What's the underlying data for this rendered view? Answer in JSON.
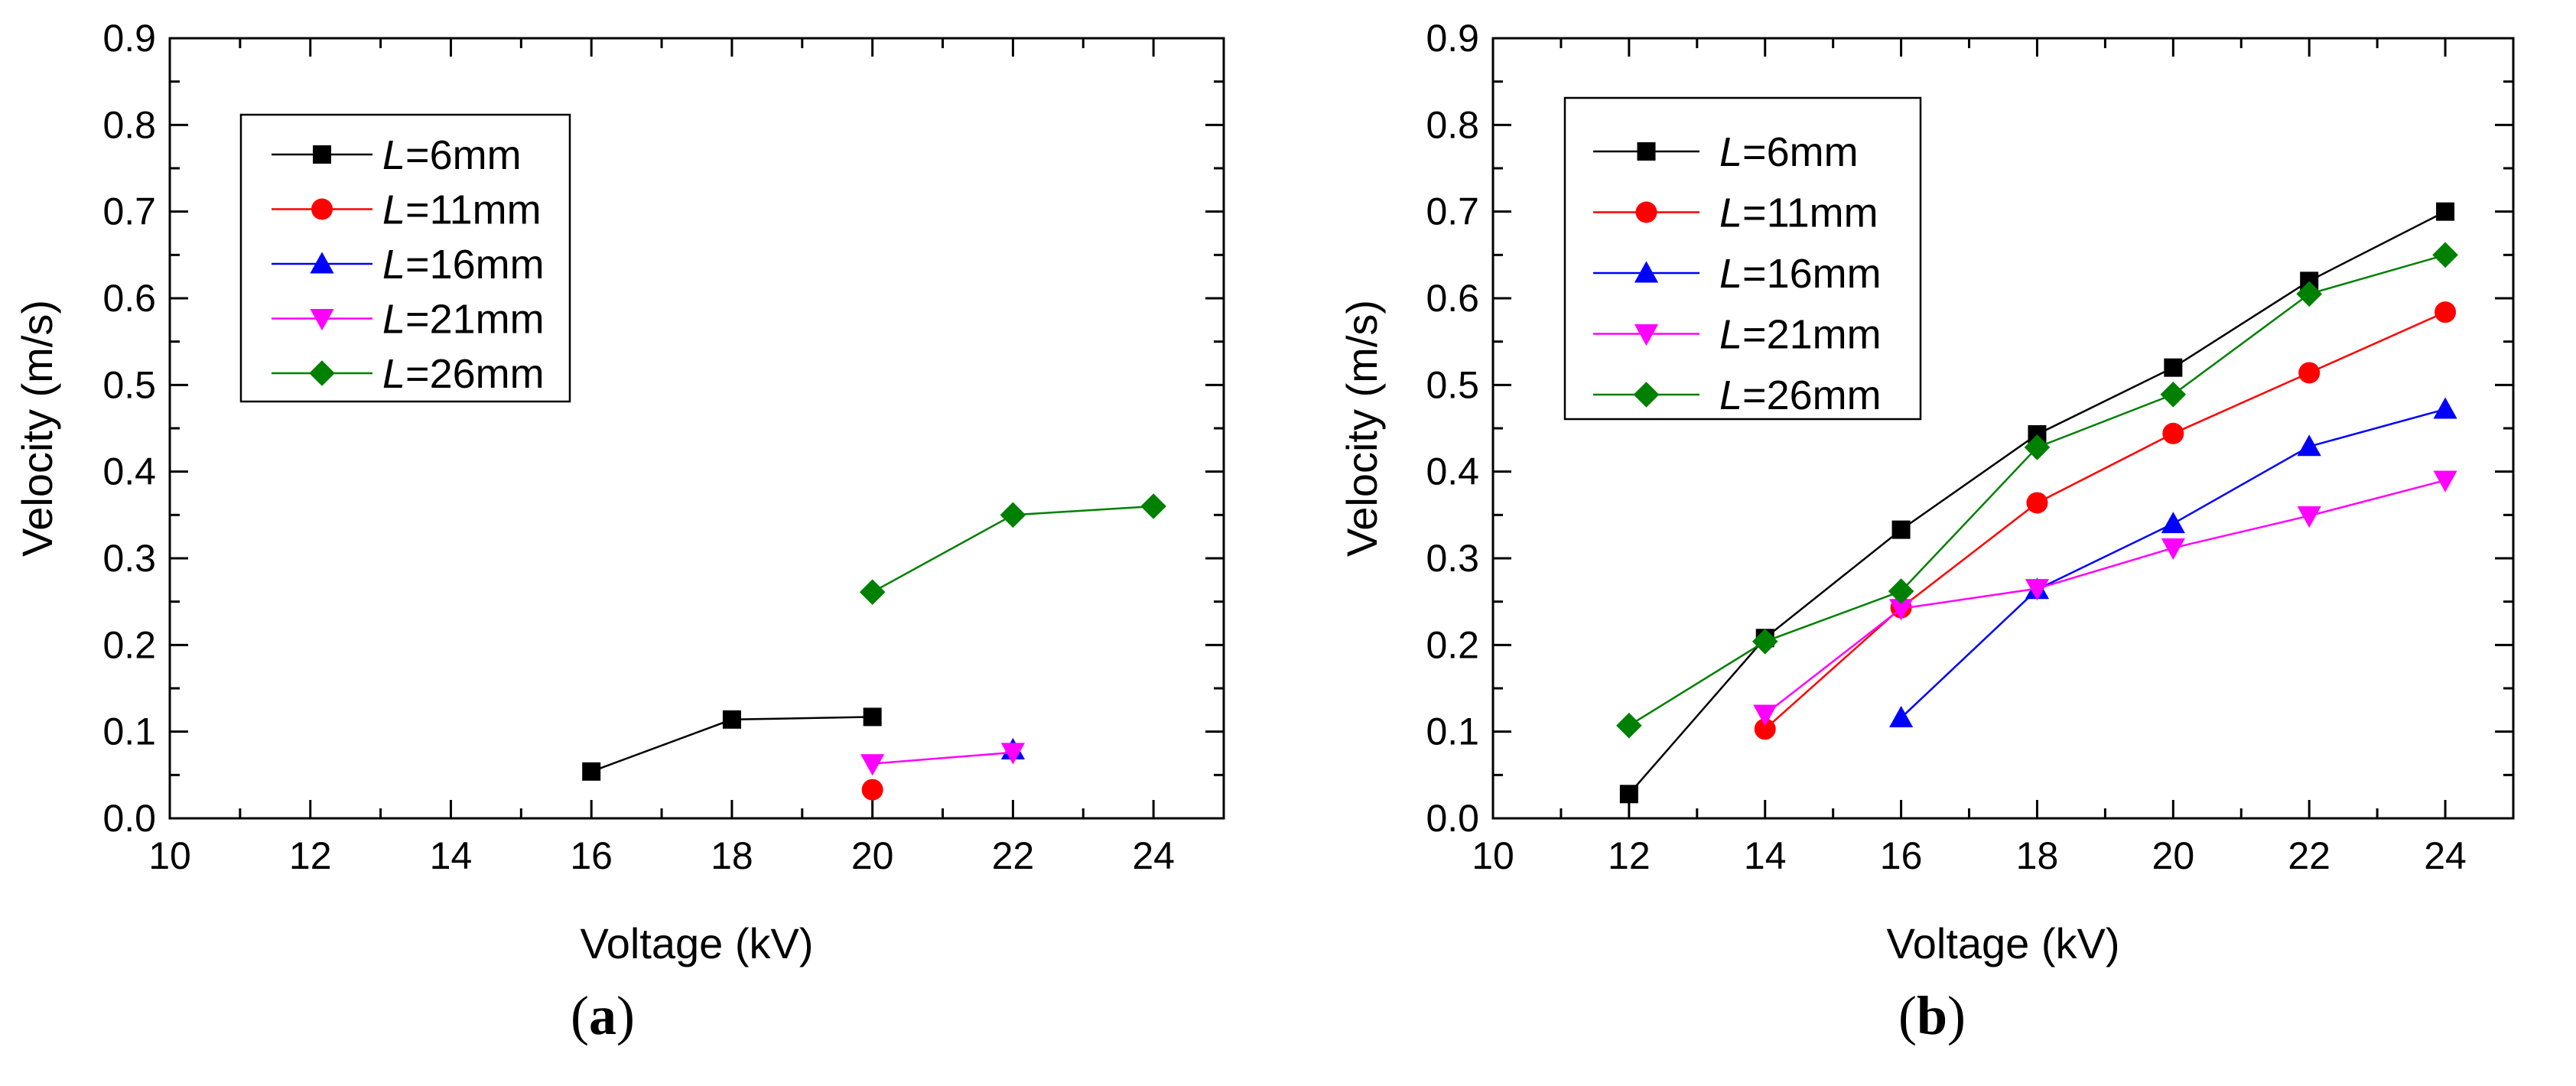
{
  "chart_data": [
    {
      "type": "line",
      "panel_label": "a",
      "xlabel": "Voltage (kV)",
      "ylabel": "Velocity (m/s)",
      "xlim": [
        10,
        25
      ],
      "ylim": [
        0,
        0.9
      ],
      "xticks": [
        "10",
        "12",
        "14",
        "16",
        "18",
        "20",
        "22",
        "24"
      ],
      "yticks": [
        "0.0",
        "0.1",
        "0.2",
        "0.3",
        "0.4",
        "0.5",
        "0.6",
        "0.7",
        "0.8",
        "0.9"
      ],
      "legend_position": "top-left",
      "series": [
        {
          "name": "L=6mm",
          "name_var": "L",
          "name_rest": "=6mm",
          "color": "#000000",
          "marker": "square",
          "x": [
            16,
            18,
            20
          ],
          "y": [
            0.054,
            0.114,
            0.117
          ]
        },
        {
          "name": "L=11mm",
          "name_var": "L",
          "name_rest": "=11mm",
          "color": "#ff0000",
          "marker": "circle",
          "x": [
            20
          ],
          "y": [
            0.033
          ]
        },
        {
          "name": "L=16mm",
          "name_var": "L",
          "name_rest": "=16mm",
          "color": "#0000ff",
          "marker": "triangle-up",
          "x": [
            22
          ],
          "y": [
            0.079
          ]
        },
        {
          "name": "L=21mm",
          "name_var": "L",
          "name_rest": "=21mm",
          "color": "#ff00ff",
          "marker": "triangle-down",
          "x": [
            20,
            22
          ],
          "y": [
            0.063,
            0.076
          ]
        },
        {
          "name": "L=26mm",
          "name_var": "L",
          "name_rest": "=26mm",
          "color": "#008000",
          "marker": "diamond",
          "x": [
            20,
            22,
            24
          ],
          "y": [
            0.261,
            0.35,
            0.36
          ]
        }
      ]
    },
    {
      "type": "line",
      "panel_label": "b",
      "xlabel": "Voltage (kV)",
      "ylabel": "Velocity (m/s)",
      "xlim": [
        10,
        25
      ],
      "ylim": [
        0,
        0.9
      ],
      "xticks": [
        "10",
        "12",
        "14",
        "16",
        "18",
        "20",
        "22",
        "24"
      ],
      "yticks": [
        "0.0",
        "0.1",
        "0.2",
        "0.3",
        "0.4",
        "0.5",
        "0.6",
        "0.7",
        "0.8",
        "0.9"
      ],
      "legend_position": "top-left",
      "series": [
        {
          "name": "L=6mm",
          "name_var": "L",
          "name_rest": "=6mm",
          "color": "#000000",
          "marker": "square",
          "x": [
            12,
            14,
            16,
            18,
            20,
            22,
            24
          ],
          "y": [
            0.028,
            0.208,
            0.333,
            0.443,
            0.52,
            0.62,
            0.7
          ]
        },
        {
          "name": "L=11mm",
          "name_var": "L",
          "name_rest": "=11mm",
          "color": "#ff0000",
          "marker": "circle",
          "x": [
            14,
            16,
            18,
            20,
            22,
            24
          ],
          "y": [
            0.103,
            0.243,
            0.364,
            0.444,
            0.514,
            0.584
          ]
        },
        {
          "name": "L=16mm",
          "name_var": "L",
          "name_rest": "=16mm",
          "color": "#0000ff",
          "marker": "triangle-up",
          "x": [
            16,
            18,
            20,
            22,
            24
          ],
          "y": [
            0.116,
            0.264,
            0.34,
            0.429,
            0.472
          ]
        },
        {
          "name": "L=21mm",
          "name_var": "L",
          "name_rest": "=21mm",
          "color": "#ff00ff",
          "marker": "triangle-down",
          "x": [
            14,
            16,
            18,
            20,
            22,
            24
          ],
          "y": [
            0.12,
            0.242,
            0.265,
            0.312,
            0.349,
            0.39
          ]
        },
        {
          "name": "L=26mm",
          "name_var": "L",
          "name_rest": "=26mm",
          "color": "#008000",
          "marker": "diamond",
          "x": [
            12,
            14,
            16,
            18,
            20,
            22,
            24
          ],
          "y": [
            0.107,
            0.204,
            0.262,
            0.428,
            0.489,
            0.605,
            0.65
          ]
        }
      ]
    }
  ]
}
